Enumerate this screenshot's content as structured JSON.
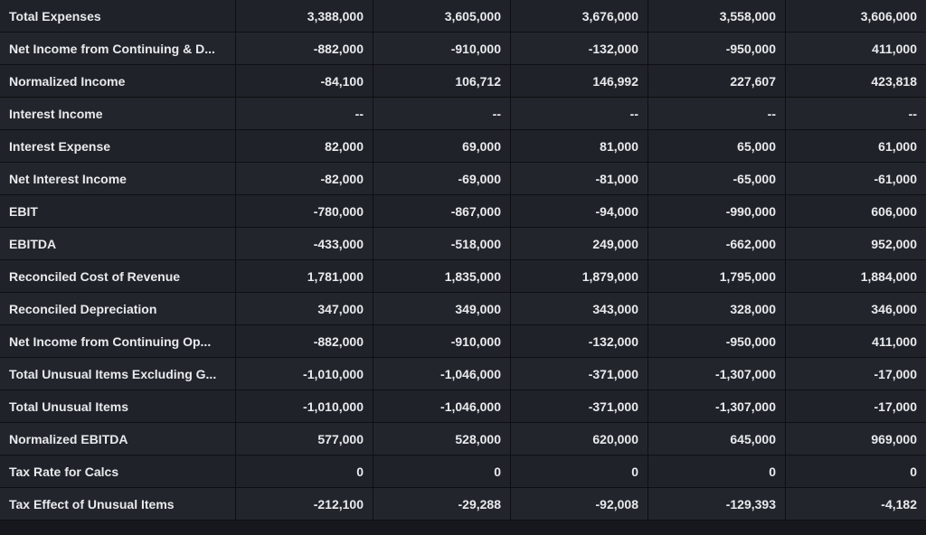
{
  "rows": [
    {
      "label": "Total Expenses",
      "values": [
        "3,388,000",
        "3,605,000",
        "3,676,000",
        "3,558,000",
        "3,606,000"
      ]
    },
    {
      "label": "Net Income from Continuing & D...",
      "values": [
        "-882,000",
        "-910,000",
        "-132,000",
        "-950,000",
        "411,000"
      ]
    },
    {
      "label": "Normalized Income",
      "values": [
        "-84,100",
        "106,712",
        "146,992",
        "227,607",
        "423,818"
      ]
    },
    {
      "label": "Interest Income",
      "values": [
        "--",
        "--",
        "--",
        "--",
        "--"
      ]
    },
    {
      "label": "Interest Expense",
      "values": [
        "82,000",
        "69,000",
        "81,000",
        "65,000",
        "61,000"
      ]
    },
    {
      "label": "Net Interest Income",
      "values": [
        "-82,000",
        "-69,000",
        "-81,000",
        "-65,000",
        "-61,000"
      ]
    },
    {
      "label": "EBIT",
      "values": [
        "-780,000",
        "-867,000",
        "-94,000",
        "-990,000",
        "606,000"
      ]
    },
    {
      "label": "EBITDA",
      "values": [
        "-433,000",
        "-518,000",
        "249,000",
        "-662,000",
        "952,000"
      ]
    },
    {
      "label": "Reconciled Cost of Revenue",
      "values": [
        "1,781,000",
        "1,835,000",
        "1,879,000",
        "1,795,000",
        "1,884,000"
      ]
    },
    {
      "label": "Reconciled Depreciation",
      "values": [
        "347,000",
        "349,000",
        "343,000",
        "328,000",
        "346,000"
      ]
    },
    {
      "label": "Net Income from Continuing Op...",
      "values": [
        "-882,000",
        "-910,000",
        "-132,000",
        "-950,000",
        "411,000"
      ]
    },
    {
      "label": "Total Unusual Items Excluding G...",
      "values": [
        "-1,010,000",
        "-1,046,000",
        "-371,000",
        "-1,307,000",
        "-17,000"
      ]
    },
    {
      "label": "Total Unusual Items",
      "values": [
        "-1,010,000",
        "-1,046,000",
        "-371,000",
        "-1,307,000",
        "-17,000"
      ]
    },
    {
      "label": "Normalized EBITDA",
      "values": [
        "577,000",
        "528,000",
        "620,000",
        "645,000",
        "969,000"
      ]
    },
    {
      "label": "Tax Rate for Calcs",
      "values": [
        "0",
        "0",
        "0",
        "0",
        "0"
      ]
    },
    {
      "label": "Tax Effect of Unusual Items",
      "values": [
        "-212,100",
        "-29,288",
        "-92,008",
        "-129,393",
        "-4,182"
      ]
    }
  ]
}
